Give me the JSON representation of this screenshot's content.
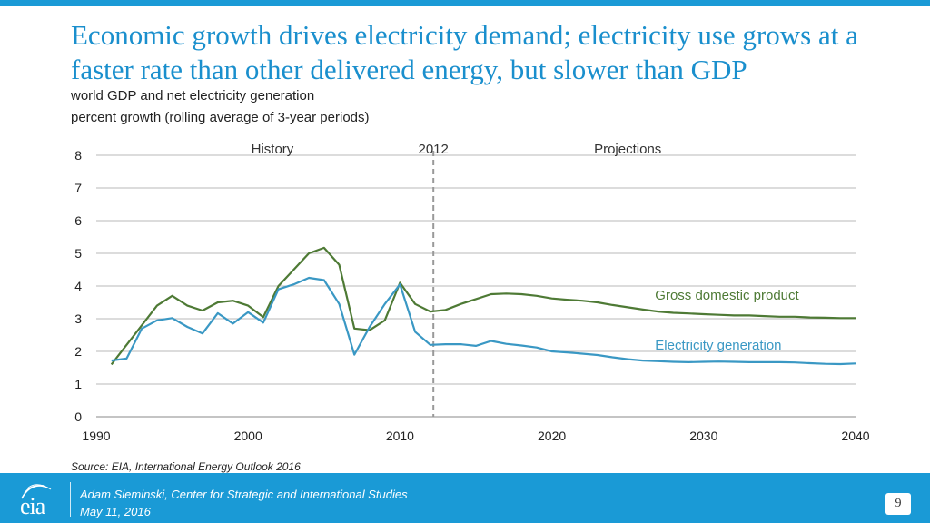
{
  "title": "Economic growth drives electricity demand; electricity use grows at a faster rate than other delivered energy, but slower than GDP",
  "subtitle_line1": "world GDP and net electricity generation",
  "subtitle_line2": "percent growth (rolling average of 3-year periods)",
  "source": "Source:  EIA, International Energy Outlook 2016",
  "footer": {
    "logo_text": "eia",
    "author": "Adam Sieminski, Center for Strategic and International Studies",
    "date": "May 11, 2016",
    "page_number": "9"
  },
  "colors": {
    "accent": "#1a9ad6",
    "gdp": "#4e7a35",
    "electricity": "#3a98c4",
    "grid": "#b8b8b8",
    "divider": "#999999"
  },
  "chart_data": {
    "type": "line",
    "title": "",
    "xlabel": "",
    "ylabel": "",
    "xlim": [
      1990,
      2040
    ],
    "ylim": [
      0,
      8
    ],
    "xticks": [
      1990,
      2000,
      2010,
      2020,
      2030,
      2040
    ],
    "yticks": [
      0,
      1,
      2,
      3,
      4,
      5,
      6,
      7,
      8
    ],
    "grid": true,
    "annotations": [
      {
        "text": "History",
        "x": 2001.6
      },
      {
        "text": "2012",
        "x": 2012.2
      },
      {
        "text": "Projections",
        "x": 2025
      }
    ],
    "divider_x": 2012.2,
    "x": [
      1991,
      1992,
      1993,
      1994,
      1995,
      1996,
      1997,
      1998,
      1999,
      2000,
      2001,
      2002,
      2003,
      2004,
      2005,
      2006,
      2007,
      2008,
      2009,
      2010,
      2011,
      2012,
      2013,
      2014,
      2015,
      2016,
      2017,
      2018,
      2019,
      2020,
      2021,
      2022,
      2023,
      2024,
      2025,
      2026,
      2027,
      2028,
      2029,
      2030,
      2031,
      2032,
      2033,
      2034,
      2035,
      2036,
      2037,
      2038,
      2039,
      2040
    ],
    "series": [
      {
        "name": "Gross domestic product",
        "label_x": 2026.8,
        "label_y": 3.72,
        "values": [
          1.6,
          2.2,
          2.8,
          3.4,
          3.7,
          3.4,
          3.25,
          3.5,
          3.55,
          3.4,
          3.05,
          4.0,
          4.5,
          5.0,
          5.17,
          4.65,
          2.7,
          2.65,
          2.95,
          4.1,
          3.45,
          3.22,
          3.27,
          3.45,
          3.6,
          3.75,
          3.77,
          3.75,
          3.7,
          3.62,
          3.58,
          3.55,
          3.5,
          3.42,
          3.35,
          3.28,
          3.22,
          3.18,
          3.16,
          3.14,
          3.12,
          3.1,
          3.1,
          3.08,
          3.06,
          3.06,
          3.04,
          3.03,
          3.02,
          3.02
        ]
      },
      {
        "name": "Electricity generation",
        "label_x": 2026.8,
        "label_y": 2.2,
        "values": [
          1.72,
          1.78,
          2.7,
          2.95,
          3.02,
          2.75,
          2.55,
          3.17,
          2.85,
          3.2,
          2.88,
          3.9,
          4.05,
          4.25,
          4.18,
          3.45,
          1.9,
          2.75,
          3.45,
          4.05,
          2.6,
          2.2,
          2.22,
          2.22,
          2.17,
          2.32,
          2.23,
          2.18,
          2.12,
          2.0,
          1.97,
          1.93,
          1.89,
          1.82,
          1.76,
          1.72,
          1.7,
          1.68,
          1.67,
          1.68,
          1.69,
          1.68,
          1.67,
          1.67,
          1.67,
          1.66,
          1.64,
          1.62,
          1.61,
          1.63
        ]
      }
    ]
  }
}
